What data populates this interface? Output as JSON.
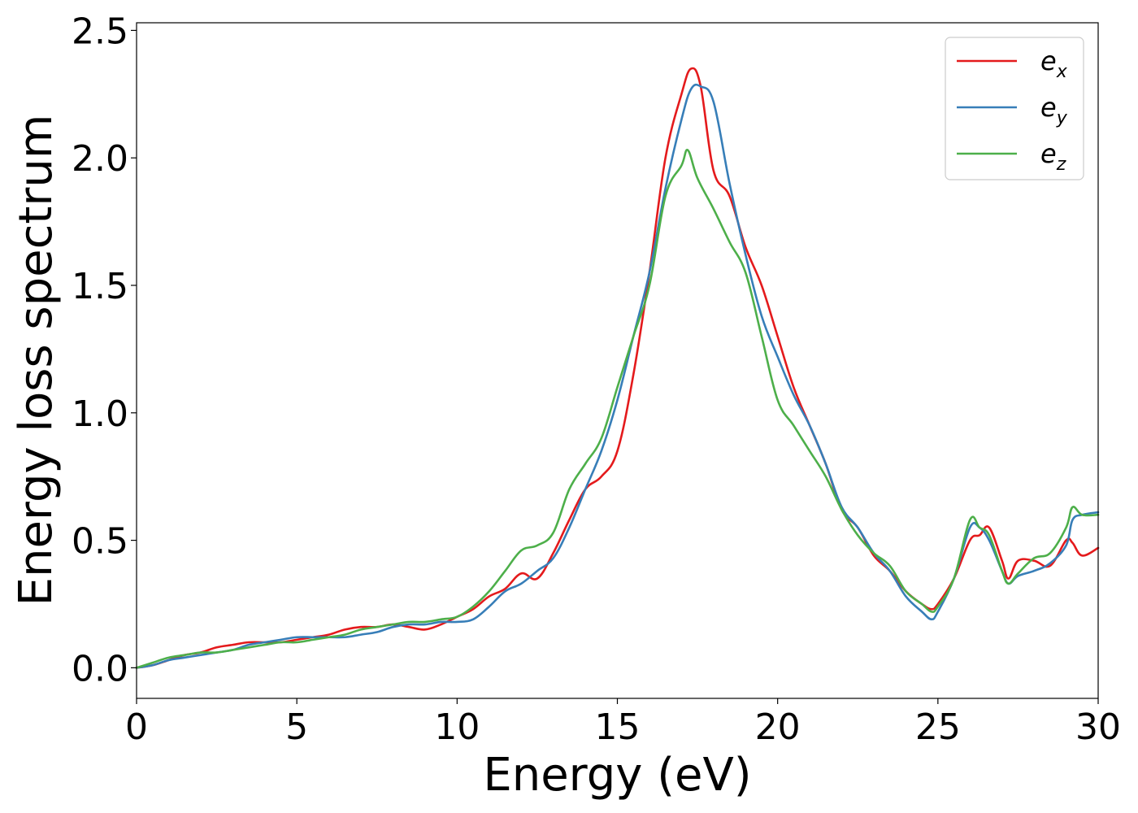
{
  "chart_data": {
    "type": "line",
    "xlabel": "Energy (eV)",
    "ylabel": "Energy loss spectrum",
    "xlim": [
      0,
      30
    ],
    "ylim": [
      -0.12,
      2.53
    ],
    "xticks": [
      0,
      5,
      10,
      15,
      20,
      25,
      30
    ],
    "xtick_labels": [
      "0",
      "5",
      "10",
      "15",
      "20",
      "25",
      "30"
    ],
    "yticks": [
      0.0,
      0.5,
      1.0,
      1.5,
      2.0,
      2.5
    ],
    "ytick_labels": [
      "0.0",
      "0.5",
      "1.0",
      "1.5",
      "2.0",
      "2.5"
    ],
    "grid": false,
    "legend_position": "top-right",
    "series": [
      {
        "name": "e_x",
        "legend_base": "e",
        "legend_sub": "x",
        "color": "#e41a1c",
        "x": [
          0,
          0.5,
          1,
          1.5,
          2,
          2.5,
          3,
          3.5,
          4,
          4.5,
          5,
          5.5,
          6,
          6.5,
          7,
          7.5,
          8,
          8.5,
          9,
          9.5,
          10,
          10.5,
          11,
          11.5,
          12,
          12.5,
          13,
          13.5,
          14,
          14.5,
          15,
          15.5,
          16,
          16.5,
          17,
          17.3,
          17.6,
          18,
          18.5,
          19,
          19.5,
          20,
          20.5,
          21,
          21.5,
          22,
          22.5,
          23,
          23.5,
          24,
          24.5,
          24.8,
          25,
          25.5,
          26,
          26.3,
          26.6,
          27,
          27.2,
          27.5,
          28,
          28.5,
          29,
          29.2,
          29.5,
          30
        ],
        "y": [
          0.0,
          0.01,
          0.03,
          0.05,
          0.06,
          0.08,
          0.09,
          0.1,
          0.1,
          0.1,
          0.11,
          0.12,
          0.13,
          0.15,
          0.16,
          0.16,
          0.17,
          0.16,
          0.15,
          0.17,
          0.2,
          0.23,
          0.28,
          0.31,
          0.37,
          0.35,
          0.45,
          0.58,
          0.7,
          0.75,
          0.85,
          1.15,
          1.55,
          2.0,
          2.25,
          2.35,
          2.28,
          1.95,
          1.85,
          1.65,
          1.5,
          1.3,
          1.1,
          0.95,
          0.8,
          0.62,
          0.55,
          0.44,
          0.38,
          0.3,
          0.25,
          0.23,
          0.25,
          0.35,
          0.5,
          0.52,
          0.55,
          0.42,
          0.35,
          0.42,
          0.42,
          0.4,
          0.5,
          0.49,
          0.44,
          0.47
        ]
      },
      {
        "name": "e_y",
        "legend_base": "e",
        "legend_sub": "y",
        "color": "#377eb8",
        "x": [
          0,
          0.5,
          1,
          1.5,
          2,
          2.5,
          3,
          3.5,
          4,
          4.5,
          5,
          5.5,
          6,
          6.5,
          7,
          7.5,
          8,
          8.5,
          9,
          9.5,
          10,
          10.5,
          11,
          11.5,
          12,
          12.5,
          13,
          13.5,
          14,
          14.5,
          15,
          15.5,
          16,
          16.5,
          17,
          17.3,
          17.6,
          18,
          18.5,
          19,
          19.5,
          20,
          20.5,
          21,
          21.5,
          22,
          22.5,
          23,
          23.5,
          24,
          24.5,
          24.8,
          25,
          25.5,
          26,
          26.3,
          26.6,
          27,
          27.2,
          27.5,
          28,
          28.5,
          29,
          29.2,
          29.5,
          30
        ],
        "y": [
          0.0,
          0.01,
          0.03,
          0.04,
          0.05,
          0.06,
          0.07,
          0.09,
          0.1,
          0.11,
          0.12,
          0.12,
          0.12,
          0.12,
          0.13,
          0.14,
          0.16,
          0.17,
          0.17,
          0.18,
          0.18,
          0.19,
          0.24,
          0.3,
          0.33,
          0.38,
          0.43,
          0.55,
          0.7,
          0.85,
          1.05,
          1.3,
          1.55,
          1.88,
          2.15,
          2.27,
          2.28,
          2.22,
          1.9,
          1.62,
          1.38,
          1.22,
          1.07,
          0.95,
          0.8,
          0.63,
          0.55,
          0.45,
          0.38,
          0.28,
          0.22,
          0.19,
          0.22,
          0.35,
          0.55,
          0.55,
          0.5,
          0.38,
          0.33,
          0.36,
          0.38,
          0.41,
          0.48,
          0.58,
          0.6,
          0.61
        ]
      },
      {
        "name": "e_z",
        "legend_base": "e",
        "legend_sub": "z",
        "color": "#4daf4a",
        "x": [
          0,
          0.5,
          1,
          1.5,
          2,
          2.5,
          3,
          3.5,
          4,
          4.5,
          5,
          5.5,
          6,
          6.5,
          7,
          7.5,
          8,
          8.5,
          9,
          9.5,
          10,
          10.5,
          11,
          11.5,
          12,
          12.5,
          13,
          13.5,
          14,
          14.5,
          15,
          15.5,
          16,
          16.5,
          17,
          17.2,
          17.5,
          18,
          18.5,
          19,
          19.5,
          20,
          20.5,
          21,
          21.5,
          22,
          22.5,
          23,
          23.5,
          24,
          24.5,
          24.8,
          25,
          25.5,
          26,
          26.3,
          26.6,
          27,
          27.2,
          27.5,
          28,
          28.5,
          29,
          29.2,
          29.5,
          30
        ],
        "y": [
          0.0,
          0.02,
          0.04,
          0.05,
          0.06,
          0.06,
          0.07,
          0.08,
          0.09,
          0.1,
          0.1,
          0.11,
          0.12,
          0.13,
          0.15,
          0.16,
          0.17,
          0.18,
          0.18,
          0.19,
          0.2,
          0.24,
          0.3,
          0.38,
          0.46,
          0.48,
          0.53,
          0.7,
          0.8,
          0.9,
          1.1,
          1.3,
          1.5,
          1.85,
          1.97,
          2.03,
          1.92,
          1.8,
          1.67,
          1.55,
          1.3,
          1.05,
          0.95,
          0.85,
          0.75,
          0.62,
          0.52,
          0.45,
          0.4,
          0.3,
          0.25,
          0.22,
          0.24,
          0.35,
          0.58,
          0.55,
          0.52,
          0.38,
          0.33,
          0.37,
          0.43,
          0.45,
          0.55,
          0.63,
          0.6,
          0.6
        ]
      }
    ]
  }
}
